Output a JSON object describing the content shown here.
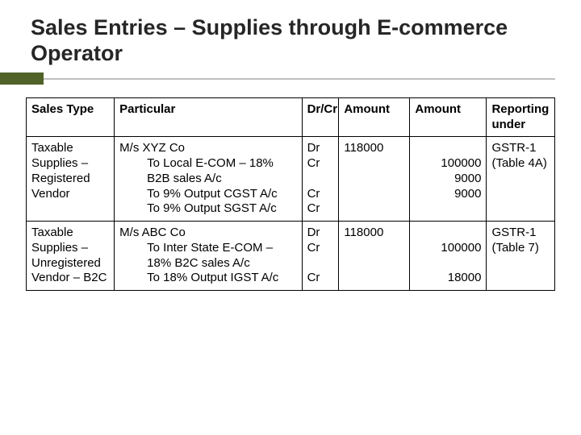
{
  "title": "Sales Entries – Supplies through E-commerce Operator",
  "headers": {
    "c1": "Sales Type",
    "c2": "Particular",
    "c3": "Dr/Cr",
    "c4": "Amount",
    "c5": "Amount",
    "c6": "Reporting under"
  },
  "rows": [
    {
      "sales_type": "Taxable Supplies – Registered Vendor",
      "particular_main": "M/s XYZ Co",
      "particular_subs": [
        "To Local E-COM – 18% B2B sales A/c",
        "To 9% Output CGST A/c",
        "To 9% Output SGST A/c"
      ],
      "drcr": [
        "Dr",
        "Cr",
        "",
        "Cr",
        "Cr"
      ],
      "amount1": "118000",
      "amount2": [
        "",
        "100000",
        "9000",
        "9000"
      ],
      "reporting": "GSTR-1 (Table 4A)"
    },
    {
      "sales_type": "Taxable Supplies – Unregistered Vendor – B2C",
      "particular_main": "M/s ABC Co",
      "particular_subs": [
        "To Inter State E-COM – 18% B2C sales A/c",
        "To 18% Output IGST A/c"
      ],
      "drcr": [
        "Dr",
        "Cr",
        "",
        "Cr"
      ],
      "amount1": "118000",
      "amount2": [
        "",
        "100000",
        "",
        "18000"
      ],
      "reporting": "GSTR-1 (Table 7)"
    }
  ],
  "colors": {
    "accent": "#4f6228",
    "divider": "#bfbfbf",
    "text": "#262626",
    "border": "#000000",
    "background": "#ffffff"
  },
  "typography": {
    "title_fontsize": 27,
    "cell_fontsize": 15,
    "font_family": "Arial"
  },
  "layout": {
    "col_widths_pct": [
      15.5,
      33,
      6.5,
      12.5,
      13.5,
      12
    ],
    "slide_width": 720,
    "slide_height": 540
  }
}
